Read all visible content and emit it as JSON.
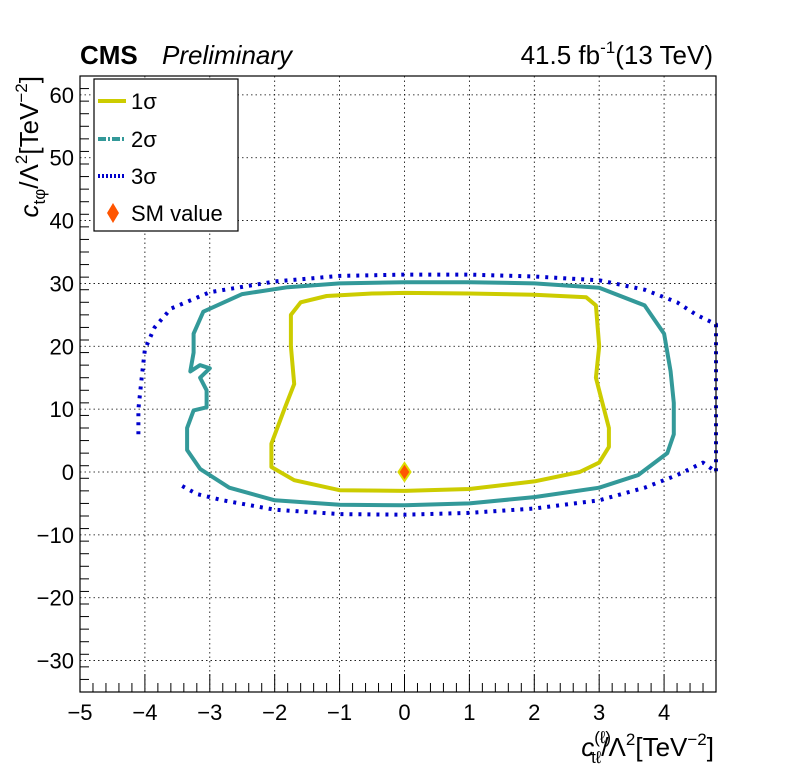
{
  "header": {
    "experiment": "CMS",
    "status": "Preliminary",
    "lumi": "41.5 fb",
    "lumi_exp": "-1",
    "energy": "(13 TeV)"
  },
  "axes": {
    "x_label_sym": "c",
    "x_label_sub": "tℓ",
    "x_label_sup": "(ℓ)",
    "x_label_rest": "/Λ",
    "x_label_pow": "2",
    "x_label_unit": "[TeV",
    "x_label_unit_pow": "−2",
    "x_label_close": "]",
    "y_label_sym": "c",
    "y_label_sub": "tφ",
    "y_label_rest": "/Λ",
    "y_label_pow": "2",
    "y_label_unit": "[TeV",
    "y_label_unit_pow": "−2",
    "y_label_close": "]"
  },
  "legend": {
    "s1": "1σ",
    "s2": "2σ",
    "s3": "3σ",
    "sm": "SM value"
  },
  "chart_data": {
    "type": "line",
    "xlim": [
      -5,
      4.8
    ],
    "ylim": [
      -35,
      63
    ],
    "x_ticks": [
      -5,
      -4,
      -3,
      -2,
      -1,
      0,
      1,
      2,
      3,
      4
    ],
    "x_tick_labels": [
      "−5",
      "−4",
      "−3",
      "−2",
      "−1",
      "0",
      "1",
      "2",
      "3",
      "4"
    ],
    "y_ticks": [
      -30,
      -20,
      -10,
      0,
      10,
      20,
      30,
      40,
      50,
      60
    ],
    "y_tick_labels": [
      "−30",
      "−20",
      "−10",
      "0",
      "10",
      "20",
      "30",
      "40",
      "50",
      "60"
    ],
    "grid": true,
    "legend_position": "top-left",
    "colors": {
      "s1": "#cccc00",
      "s2": "#339999",
      "s3": "#0000cc",
      "sm_fill": "#ff5500",
      "sm_edge": "#dddd00"
    },
    "sm_point": {
      "x": 0,
      "y": 0
    },
    "series": [
      {
        "name": "1σ",
        "points": [
          [
            0,
            28.5
          ],
          [
            1,
            28.4
          ],
          [
            2,
            28.2
          ],
          [
            2.8,
            27.8
          ],
          [
            2.95,
            26.5
          ],
          [
            3.0,
            20
          ],
          [
            2.95,
            15
          ],
          [
            3.05,
            11
          ],
          [
            3.15,
            7
          ],
          [
            3.15,
            4
          ],
          [
            3.0,
            1.5
          ],
          [
            2.7,
            0.0
          ],
          [
            2.0,
            -1.5
          ],
          [
            1,
            -2.7
          ],
          [
            0,
            -3.0
          ],
          [
            -1,
            -2.9
          ],
          [
            -1.7,
            -1.3
          ],
          [
            -2.05,
            0.8
          ],
          [
            -2.05,
            4.5
          ],
          [
            -1.85,
            10
          ],
          [
            -1.7,
            14
          ],
          [
            -1.75,
            20
          ],
          [
            -1.75,
            25
          ],
          [
            -1.6,
            27.0
          ],
          [
            -1.2,
            28.0
          ],
          [
            -0.5,
            28.4
          ],
          [
            0,
            28.5
          ]
        ]
      },
      {
        "name": "2σ",
        "points": [
          [
            0,
            30.2
          ],
          [
            1,
            30.2
          ],
          [
            2,
            30.0
          ],
          [
            3,
            29.3
          ],
          [
            3.7,
            26.5
          ],
          [
            4.0,
            22
          ],
          [
            4.1,
            16
          ],
          [
            4.15,
            11
          ],
          [
            4.15,
            6
          ],
          [
            4.05,
            3
          ],
          [
            3.6,
            -0.5
          ],
          [
            3,
            -2.5
          ],
          [
            2,
            -4.0
          ],
          [
            1,
            -5.0
          ],
          [
            0,
            -5.3
          ],
          [
            -1,
            -5.2
          ],
          [
            -2,
            -4.5
          ],
          [
            -2.7,
            -2.5
          ],
          [
            -3.15,
            0.5
          ],
          [
            -3.35,
            3.5
          ],
          [
            -3.35,
            7
          ],
          [
            -3.25,
            9.8
          ],
          [
            -3.05,
            10.3
          ],
          [
            -3.05,
            13
          ],
          [
            -3.15,
            15
          ],
          [
            -3.0,
            16.5
          ],
          [
            -3.15,
            17
          ],
          [
            -3.3,
            16
          ],
          [
            -3.25,
            19
          ],
          [
            -3.25,
            22
          ],
          [
            -3.1,
            25.5
          ],
          [
            -2.5,
            28.3
          ],
          [
            -1.8,
            29.4
          ],
          [
            -1,
            30.0
          ],
          [
            0,
            30.2
          ]
        ]
      },
      {
        "name": "3σ",
        "points": [
          [
            -4.1,
            6
          ],
          [
            -4.1,
            10
          ],
          [
            -4.05,
            15
          ],
          [
            -4.0,
            19.5
          ],
          [
            -3.85,
            23
          ],
          [
            -3.6,
            26
          ],
          [
            -3.0,
            28.6
          ],
          [
            -2,
            30.3
          ],
          [
            -1,
            31.2
          ],
          [
            0,
            31.4
          ],
          [
            1,
            31.4
          ],
          [
            2,
            31.1
          ],
          [
            3,
            30.5
          ],
          [
            3.7,
            29
          ],
          [
            4.2,
            27
          ],
          [
            4.5,
            25.0
          ],
          [
            4.8,
            23.5
          ],
          [
            4.8,
            0
          ],
          [
            4.6,
            1.5
          ],
          [
            4.2,
            -0.5
          ],
          [
            3.7,
            -2.5
          ],
          [
            3,
            -4.5
          ],
          [
            2,
            -5.8
          ],
          [
            1,
            -6.5
          ],
          [
            0,
            -6.8
          ],
          [
            -1,
            -6.7
          ],
          [
            -2,
            -6.0
          ],
          [
            -2.8,
            -4.5
          ],
          [
            -3.2,
            -3.5
          ],
          [
            -3.5,
            -1.8
          ]
        ]
      }
    ]
  }
}
